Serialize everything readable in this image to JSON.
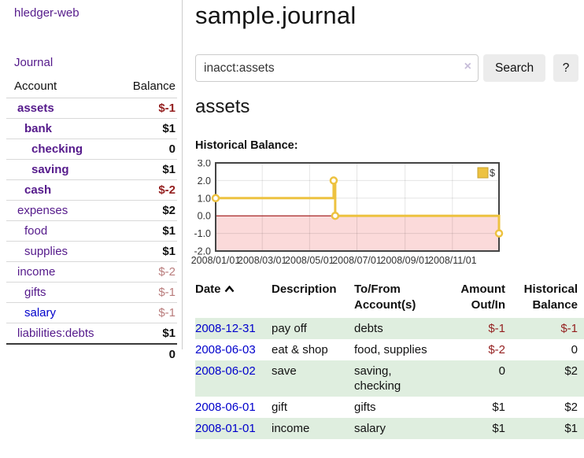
{
  "app": {
    "brand": "hledger-web"
  },
  "colors": {
    "accent_purple": "#551a8b",
    "link_blue": "#0000cc",
    "negative_red": "#941f1f",
    "negative_muted_red": "#b97c7c",
    "stripe_green": "#dfeedf",
    "chart_line_yellow": "#edc240",
    "chart_negative_bg": "#fbdada",
    "chart_zero_line": "#990000"
  },
  "sidebar": {
    "journal_link": "Journal",
    "accounts_table": {
      "col_account": "Account",
      "col_balance": "Balance",
      "rows": [
        {
          "name": "assets",
          "depth": 0,
          "bold": true,
          "link_color": "purple",
          "balance": "$-1",
          "balance_style": "neg-strong"
        },
        {
          "name": "bank",
          "depth": 1,
          "bold": true,
          "link_color": "purple",
          "balance": "$1",
          "balance_style": "normal"
        },
        {
          "name": "checking",
          "depth": 2,
          "bold": true,
          "link_color": "purple",
          "balance": "0",
          "balance_style": "normal"
        },
        {
          "name": "saving",
          "depth": 2,
          "bold": true,
          "link_color": "purple",
          "balance": "$1",
          "balance_style": "normal"
        },
        {
          "name": "cash",
          "depth": 1,
          "bold": true,
          "link_color": "purple",
          "balance": "$-2",
          "balance_style": "neg-strong"
        },
        {
          "name": "expenses",
          "depth": 0,
          "bold": false,
          "link_color": "purple",
          "balance": "$2",
          "balance_style": "normal"
        },
        {
          "name": "food",
          "depth": 1,
          "bold": false,
          "link_color": "purple",
          "balance": "$1",
          "balance_style": "normal"
        },
        {
          "name": "supplies",
          "depth": 1,
          "bold": false,
          "link_color": "purple",
          "balance": "$1",
          "balance_style": "normal"
        },
        {
          "name": "income",
          "depth": 0,
          "bold": false,
          "link_color": "purple",
          "balance": "$-2",
          "balance_style": "neg-muted"
        },
        {
          "name": "gifts",
          "depth": 1,
          "bold": false,
          "link_color": "purple",
          "balance": "$-1",
          "balance_style": "neg-muted"
        },
        {
          "name": "salary",
          "depth": 1,
          "bold": false,
          "link_color": "blue",
          "balance": "$-1",
          "balance_style": "neg-muted"
        },
        {
          "name": "liabilities:debts",
          "depth": 0,
          "bold": false,
          "link_color": "purple",
          "balance": "$1",
          "balance_style": "normal"
        }
      ],
      "total": "0"
    }
  },
  "main": {
    "title": "sample.journal",
    "search": {
      "value": "inacct:assets",
      "clear_icon": "×",
      "search_button": "Search",
      "help_button": "?"
    },
    "account_heading": "assets",
    "chart_title": "Historical Balance:"
  },
  "chart_data": {
    "type": "line",
    "title": "Historical Balance:",
    "step": true,
    "series": [
      {
        "name": "$",
        "color": "#edc240",
        "points": [
          [
            "2008-01-01",
            1
          ],
          [
            "2008-06-01",
            2
          ],
          [
            "2008-06-03",
            0
          ],
          [
            "2008-12-31",
            -1
          ]
        ]
      }
    ],
    "x_ticks": [
      "2008/01/01",
      "2008/03/01",
      "2008/05/01",
      "2008/07/01",
      "2008/09/01",
      "2008/11/01"
    ],
    "y_ticks": [
      "3.0",
      "2.0",
      "1.0",
      "0.0",
      "-1.0",
      "-2.0"
    ],
    "xlim": [
      "2008-01-01",
      "2008-12-31"
    ],
    "ylim": [
      -2,
      3
    ],
    "grid": true,
    "legend": {
      "label": "$",
      "position": "top-right"
    },
    "negative_region_color": "#fbdada",
    "zero_line_color": "#990000"
  },
  "register": {
    "headers": {
      "date": "Date",
      "description": "Description",
      "accounts": "To/From Account(s)",
      "amount": "Amount Out/In",
      "balance": "Historical Balance"
    },
    "rows": [
      {
        "date": "2008-12-31",
        "description": "pay off",
        "accounts": "debts",
        "amount": "$-1",
        "amount_style": "neg",
        "balance": "$-1",
        "balance_style": "neg",
        "stripe": true
      },
      {
        "date": "2008-06-03",
        "description": "eat & shop",
        "accounts": "food, supplies",
        "amount": "$-2",
        "amount_style": "neg",
        "balance": "0",
        "balance_style": "normal",
        "stripe": false
      },
      {
        "date": "2008-06-02",
        "description": "save",
        "accounts": "saving, checking",
        "amount": "0",
        "amount_style": "normal",
        "balance": "$2",
        "balance_style": "normal",
        "stripe": true
      },
      {
        "date": "2008-06-01",
        "description": "gift",
        "accounts": "gifts",
        "amount": "$1",
        "amount_style": "normal",
        "balance": "$2",
        "balance_style": "normal",
        "stripe": false
      },
      {
        "date": "2008-01-01",
        "description": "income",
        "accounts": "salary",
        "amount": "$1",
        "amount_style": "normal",
        "balance": "$1",
        "balance_style": "normal",
        "stripe": true
      }
    ]
  }
}
